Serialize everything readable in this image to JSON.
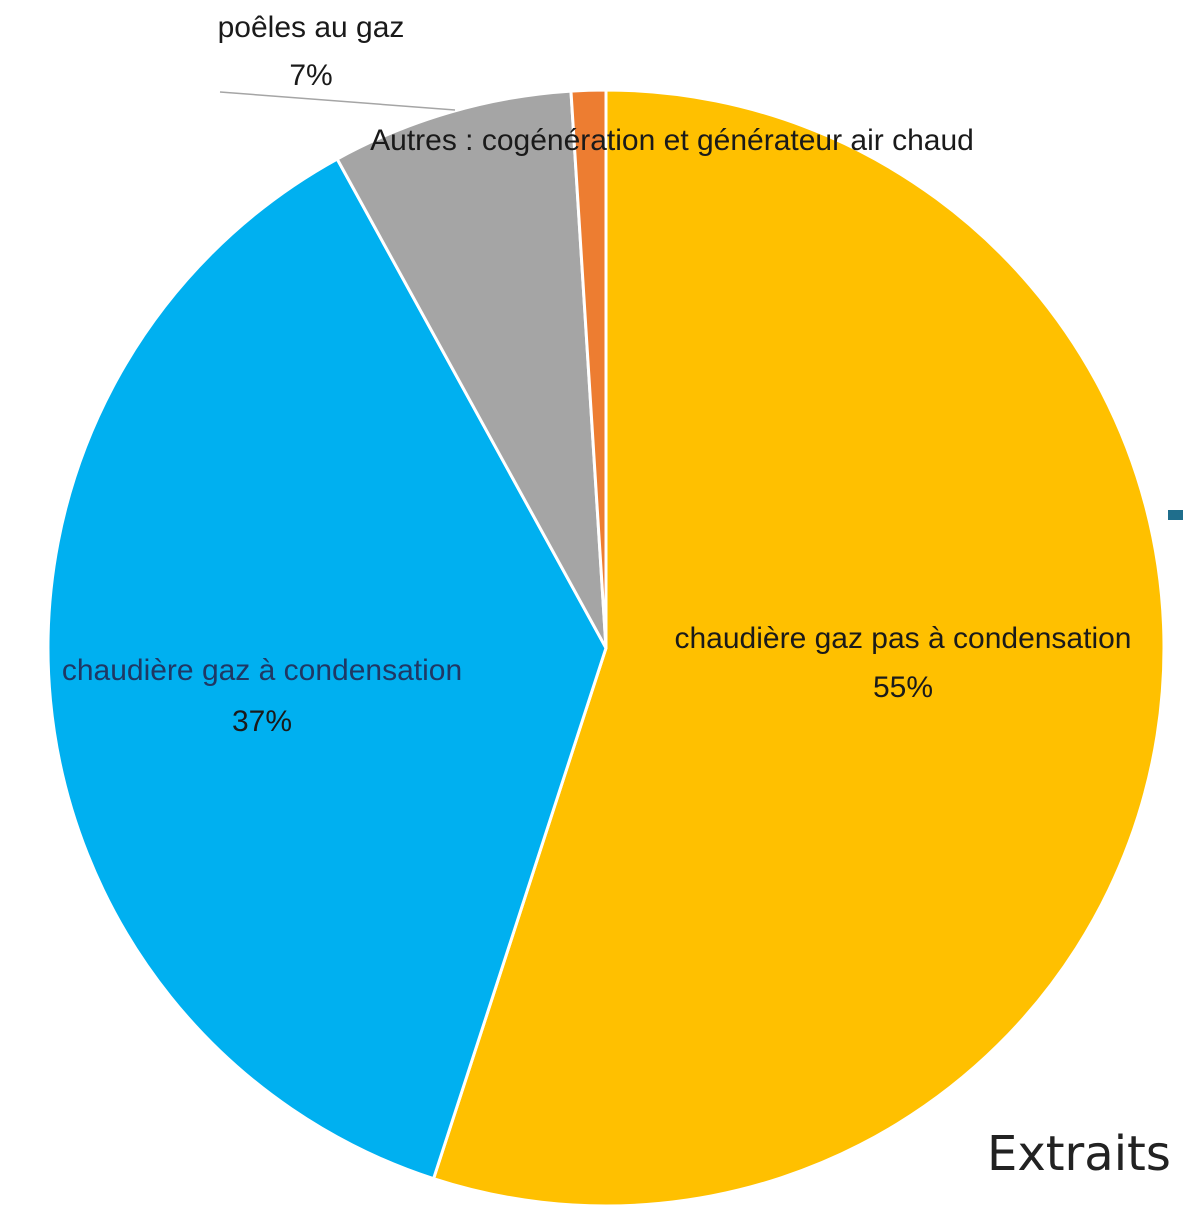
{
  "chart_data": {
    "type": "pie",
    "title": "",
    "start_angle_deg": 0,
    "direction": "clockwise",
    "slices": [
      {
        "name": "chaudière gaz pas à condensation",
        "value": 55,
        "label_value": "55%",
        "color": "#FFC000"
      },
      {
        "name": "chaudière gaz à condensation",
        "value": 37,
        "label_value": "37%",
        "color": "#00B0F0"
      },
      {
        "name": "poêles au gaz",
        "value": 7,
        "label_value": "7%",
        "color": "#A5A5A5"
      },
      {
        "name": "Autres : cogénération et générateur air chaud",
        "value": 1,
        "label_value": "",
        "color": "#ED7D31"
      }
    ]
  },
  "background": {
    "partial_text": "Extraits",
    "accent_color": "#1F6E8C"
  }
}
